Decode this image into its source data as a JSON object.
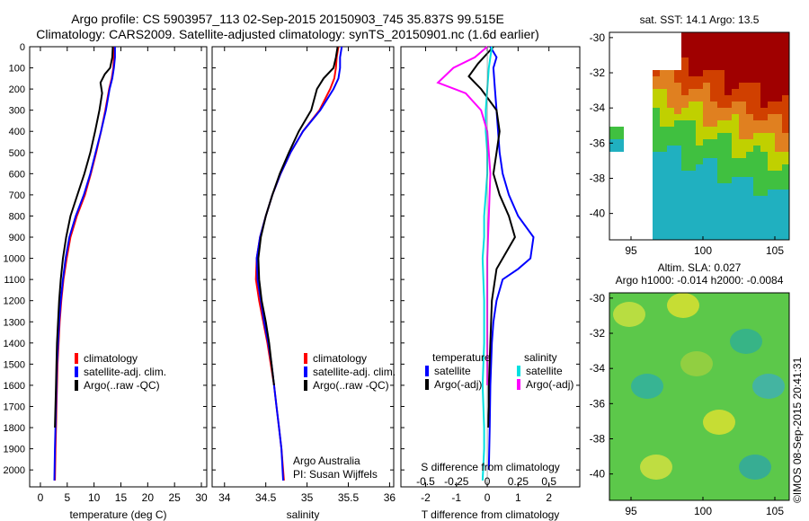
{
  "title": {
    "line1": "Argo profile: CS 5903957_113 02-Sep-2015 20150903_745 35.837S 99.515E",
    "line2": "Climatology: CARS2009. Satellite-adjusted climatology: synTS_20150901.nc (1.6d earlier)"
  },
  "stamp": "©IMOS 08-Sep-2015 20:41:31",
  "colors": {
    "climatology": "#ff0000",
    "satellite": "#0000ff",
    "argo": "#000000",
    "satellite_salinity": "#00e0e0",
    "argo_salinity_diff": "#ff00ff"
  },
  "chart_data": [
    {
      "type": "line",
      "panel": "temperature",
      "xlabel": "temperature (deg C)",
      "ylabel": "",
      "xlim": [
        -2,
        31
      ],
      "ylim": [
        2080,
        0
      ],
      "x_ticks": [
        0,
        5,
        10,
        15,
        20,
        25,
        30
      ],
      "y_ticks": [
        0,
        100,
        200,
        300,
        400,
        500,
        600,
        700,
        800,
        900,
        1000,
        1100,
        1200,
        1300,
        1400,
        1500,
        1600,
        1700,
        1800,
        1900,
        2000
      ],
      "legend": [
        "climatology",
        "satellite-adj. clim.",
        "Argo(..raw -QC)"
      ],
      "legend_placement": "lower-center",
      "series": [
        {
          "name": "climatology",
          "color": "#ff0000",
          "x": [
            13.8,
            13.7,
            13.6,
            13.3,
            12.8,
            12.1,
            11.3,
            10.4,
            9.4,
            8.3,
            6.8,
            5.6,
            4.9,
            4.3,
            3.9,
            3.6,
            3.4,
            3.2,
            3.1,
            3.0,
            2.9,
            2.8,
            2.7
          ],
          "y": [
            0,
            50,
            100,
            150,
            200,
            300,
            400,
            500,
            600,
            700,
            800,
            900,
            1000,
            1100,
            1200,
            1300,
            1400,
            1500,
            1600,
            1700,
            1800,
            1900,
            2050
          ]
        },
        {
          "name": "satellite-adj. clim.",
          "color": "#0000ff",
          "x": [
            13.9,
            13.9,
            13.7,
            13.4,
            12.9,
            12.2,
            11.3,
            10.3,
            9.3,
            8.1,
            6.6,
            5.4,
            4.7,
            4.2,
            3.8,
            3.5,
            3.3,
            3.1,
            3.0,
            2.9,
            2.8,
            2.7,
            2.6
          ],
          "y": [
            0,
            50,
            100,
            150,
            200,
            300,
            400,
            500,
            600,
            700,
            800,
            900,
            1000,
            1100,
            1200,
            1300,
            1400,
            1500,
            1600,
            1700,
            1800,
            1900,
            2050
          ]
        },
        {
          "name": "Argo(..raw -QC)",
          "color": "#000000",
          "x": [
            13.5,
            13.4,
            13.0,
            12.0,
            11.2,
            11.5,
            11.0,
            10.2,
            9.3,
            8.2,
            6.9,
            5.6,
            4.8,
            4.2,
            3.8,
            3.5,
            3.3,
            3.1,
            3.0,
            2.9,
            2.8,
            2.7
          ],
          "y": [
            0,
            50,
            100,
            130,
            170,
            220,
            300,
            400,
            500,
            600,
            700,
            800,
            900,
            1000,
            1100,
            1200,
            1300,
            1400,
            1500,
            1600,
            1700,
            1800
          ]
        }
      ]
    },
    {
      "type": "line",
      "panel": "salinity",
      "xlabel": "salinity",
      "ylabel": "",
      "xlim": [
        33.85,
        36.05
      ],
      "ylim": [
        2080,
        0
      ],
      "x_ticks": [
        34,
        34.5,
        35,
        35.5,
        36
      ],
      "legend": [
        "climatology",
        "satellite-adj. clim.",
        "Argo(..raw -QC)"
      ],
      "legend_placement": "lower-right",
      "annotation": [
        "Argo Australia",
        "PI: Susan Wijffels"
      ],
      "series": [
        {
          "name": "climatology",
          "color": "#ff0000",
          "x": [
            35.38,
            35.36,
            35.35,
            35.33,
            35.28,
            35.15,
            34.95,
            34.8,
            34.68,
            34.58,
            34.5,
            34.43,
            34.39,
            34.38,
            34.42,
            34.47,
            34.52,
            34.56,
            34.6,
            34.63,
            34.66,
            34.69,
            34.72
          ],
          "y": [
            0,
            50,
            100,
            150,
            200,
            300,
            400,
            500,
            600,
            700,
            800,
            900,
            1000,
            1100,
            1200,
            1300,
            1400,
            1500,
            1600,
            1700,
            1800,
            1900,
            2050
          ]
        },
        {
          "name": "satellite-adj. clim.",
          "color": "#0000ff",
          "x": [
            35.42,
            35.4,
            35.4,
            35.38,
            35.32,
            35.16,
            34.95,
            34.8,
            34.68,
            34.58,
            34.5,
            34.43,
            34.39,
            34.4,
            34.44,
            34.48,
            34.53,
            34.57,
            34.6,
            34.63,
            34.66,
            34.69,
            34.71
          ],
          "y": [
            0,
            50,
            100,
            150,
            200,
            300,
            400,
            500,
            600,
            700,
            800,
            900,
            1000,
            1100,
            1200,
            1300,
            1400,
            1500,
            1600,
            1700,
            1800,
            1900,
            2050
          ]
        },
        {
          "name": "Argo(..raw -QC)",
          "color": "#000000",
          "x": [
            35.37,
            35.35,
            35.32,
            35.2,
            35.12,
            35.05,
            34.9,
            34.78,
            34.67,
            34.58,
            34.5,
            34.44,
            34.41,
            34.42,
            34.45,
            34.5,
            34.54,
            34.57,
            34.6
          ],
          "y": [
            0,
            50,
            100,
            150,
            200,
            300,
            400,
            500,
            600,
            700,
            800,
            900,
            1000,
            1100,
            1200,
            1300,
            1400,
            1500,
            1600
          ]
        }
      ]
    },
    {
      "type": "line",
      "panel": "difference",
      "xlabel": "T difference from climatology",
      "xlabel_top": "S difference from climatology",
      "xlim": [
        -2.8,
        3.0
      ],
      "x_ticks": [
        -2,
        -1,
        0,
        1,
        2
      ],
      "x2_ticks": [
        -0.5,
        -0.25,
        0,
        0.25,
        0.5
      ],
      "x2_tick_labels": [
        "-0.5",
        "-0.25",
        "0",
        "0.25",
        "0.5"
      ],
      "ylim": [
        2080,
        0
      ],
      "legend_temperature": {
        "title": "temperature",
        "items": [
          "satellite",
          "Argo(-adj)"
        ]
      },
      "legend_salinity": {
        "title": "salinity",
        "items": [
          "satellite",
          "Argo(-adj)"
        ]
      },
      "series": [
        {
          "name": "satellite (temperature)",
          "color": "#0000ff",
          "x": [
            0.1,
            0.3,
            0.2,
            0.25,
            0.3,
            0.35,
            0.4,
            0.5,
            0.7,
            1.0,
            1.5,
            1.4,
            1.0,
            0.5,
            0.3,
            0.2,
            0.15,
            0.1,
            0.08,
            0.05
          ],
          "y": [
            0,
            50,
            100,
            200,
            300,
            400,
            500,
            600,
            700,
            800,
            900,
            1000,
            1050,
            1100,
            1200,
            1300,
            1400,
            1600,
            1800,
            2000
          ]
        },
        {
          "name": "Argo(-adj) (temperature)",
          "color": "#000000",
          "x": [
            0.2,
            -0.3,
            -0.6,
            -0.2,
            0.3,
            0.4,
            0.3,
            0.2,
            0.4,
            0.7,
            0.9,
            0.7,
            0.3,
            0.15,
            0.1,
            0.05,
            0.05,
            0.03
          ],
          "y": [
            0,
            80,
            140,
            200,
            300,
            400,
            500,
            600,
            700,
            800,
            900,
            950,
            1050,
            1200,
            1400,
            1600,
            1700,
            1800
          ]
        },
        {
          "name": "satellite (salinity)",
          "color": "#00e0e0",
          "x": [
            0.15,
            0.1,
            0.05,
            0.0,
            -0.05,
            -0.05,
            0.0,
            0.0,
            -0.05,
            -0.1,
            -0.1,
            -0.15,
            -0.1,
            -0.1,
            -0.15,
            -0.1,
            -0.1,
            -0.15
          ],
          "y": [
            0,
            50,
            100,
            200,
            300,
            400,
            500,
            600,
            700,
            800,
            900,
            1000,
            1200,
            1400,
            1600,
            1800,
            1900,
            2050
          ]
        },
        {
          "name": "Argo(-adj) (salinity)",
          "color": "#ff00ff",
          "x": [
            0.0,
            -0.4,
            -1.1,
            -1.6,
            -0.7,
            -0.2,
            0.0,
            0.1,
            0.05,
            0.0,
            0.0,
            0.0,
            0.0
          ],
          "y": [
            0,
            50,
            100,
            170,
            220,
            300,
            400,
            600,
            800,
            1000,
            1200,
            1400,
            1600
          ]
        }
      ]
    },
    {
      "type": "heatmap",
      "panel": "sst_map",
      "title": "sat. SST: 14.1  Argo: 13.5",
      "xlim": [
        93.5,
        106
      ],
      "ylim": [
        -41.5,
        -29.7
      ],
      "x_ticks": [
        95,
        100,
        105
      ],
      "y_ticks": [
        -30,
        -32,
        -34,
        -36,
        -38,
        -40
      ]
    },
    {
      "type": "heatmap",
      "panel": "sla_map",
      "title": "Altim. SLA: 0.027",
      "subtitle": "Argo h1000: -0.014 h2000: -0.0084",
      "xlim": [
        93.5,
        106
      ],
      "ylim": [
        -41.5,
        -29.7
      ],
      "x_ticks": [
        95,
        100,
        105
      ],
      "y_ticks": [
        -30,
        -32,
        -34,
        -36,
        -38,
        -40
      ]
    }
  ]
}
